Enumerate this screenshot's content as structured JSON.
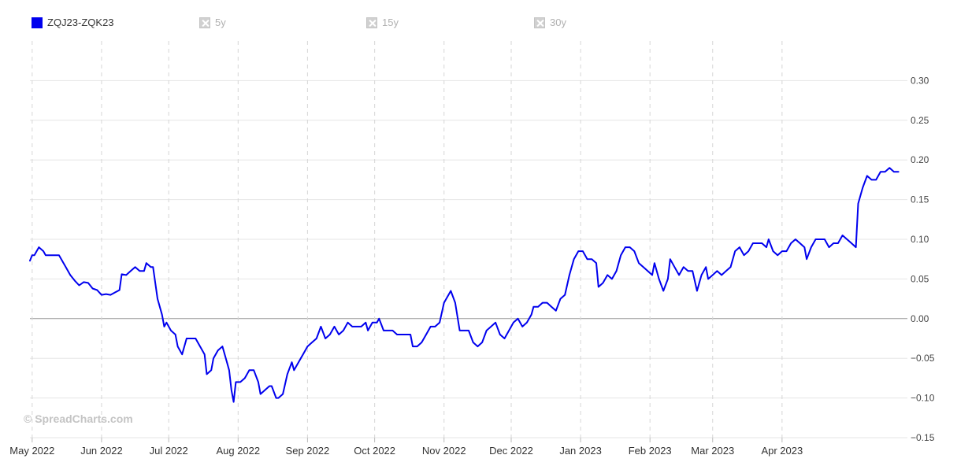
{
  "legend": {
    "items": [
      {
        "label": "ZQJ23-ZQK23",
        "active": true
      },
      {
        "label": "5y",
        "active": false
      },
      {
        "label": "15y",
        "active": false
      },
      {
        "label": "30y",
        "active": false
      }
    ]
  },
  "watermark": "© SpreadCharts.com",
  "colors": {
    "series": "#0000ee",
    "grid": "#e6e6e6",
    "zero_line": "#999999",
    "vertical_grid": "#d6d6d6"
  },
  "chart_data": {
    "type": "line",
    "title": "",
    "xlabel": "",
    "ylabel": "",
    "x_range": [
      "2022-04-30",
      "2023-05-27"
    ],
    "ylim": [
      -0.15,
      0.35
    ],
    "y_ticks": [
      "0.30",
      "0.25",
      "0.20",
      "0.15",
      "0.10",
      "0.05",
      "0.00",
      "−0.05",
      "−0.10",
      "−0.15"
    ],
    "y_tick_values": [
      0.3,
      0.25,
      0.2,
      0.15,
      0.1,
      0.05,
      0.0,
      -0.05,
      -0.1,
      -0.15
    ],
    "x_ticks": [
      {
        "label": "May 2022",
        "date": "2022-05-01"
      },
      {
        "label": "Jun 2022",
        "date": "2022-06-01"
      },
      {
        "label": "Jul 2022",
        "date": "2022-07-01"
      },
      {
        "label": "Aug 2022",
        "date": "2022-08-01"
      },
      {
        "label": "Sep 2022",
        "date": "2022-09-01"
      },
      {
        "label": "Oct 2022",
        "date": "2022-10-01"
      },
      {
        "label": "Nov 2022",
        "date": "2022-11-01"
      },
      {
        "label": "Dec 2022",
        "date": "2022-12-01"
      },
      {
        "label": "Jan 2023",
        "date": "2023-01-01"
      },
      {
        "label": "Feb 2023",
        "date": "2023-02-01"
      },
      {
        "label": "Mar 2023",
        "date": "2023-03-01"
      },
      {
        "label": "Apr 2023",
        "date": "2023-04-01"
      }
    ],
    "grid": true,
    "legend_position": "top-left",
    "series": [
      {
        "name": "ZQJ23-ZQK23",
        "points": [
          [
            "2022-04-30",
            0.073
          ],
          [
            "2022-05-01",
            0.08
          ],
          [
            "2022-05-02",
            0.08
          ],
          [
            "2022-05-03",
            0.085
          ],
          [
            "2022-05-04",
            0.09
          ],
          [
            "2022-05-06",
            0.085
          ],
          [
            "2022-05-07",
            0.08
          ],
          [
            "2022-05-10",
            0.08
          ],
          [
            "2022-05-13",
            0.08
          ],
          [
            "2022-05-16",
            0.065
          ],
          [
            "2022-05-18",
            0.055
          ],
          [
            "2022-05-20",
            0.048
          ],
          [
            "2022-05-22",
            0.042
          ],
          [
            "2022-05-24",
            0.046
          ],
          [
            "2022-05-26",
            0.045
          ],
          [
            "2022-05-28",
            0.038
          ],
          [
            "2022-05-30",
            0.036
          ],
          [
            "2022-06-01",
            0.03
          ],
          [
            "2022-06-03",
            0.031
          ],
          [
            "2022-06-05",
            0.03
          ],
          [
            "2022-06-07",
            0.033
          ],
          [
            "2022-06-09",
            0.036
          ],
          [
            "2022-06-10",
            0.056
          ],
          [
            "2022-06-12",
            0.055
          ],
          [
            "2022-06-14",
            0.06
          ],
          [
            "2022-06-16",
            0.065
          ],
          [
            "2022-06-18",
            0.06
          ],
          [
            "2022-06-20",
            0.06
          ],
          [
            "2022-06-21",
            0.07
          ],
          [
            "2022-06-23",
            0.065
          ],
          [
            "2022-06-24",
            0.065
          ],
          [
            "2022-06-26",
            0.025
          ],
          [
            "2022-06-28",
            0.005
          ],
          [
            "2022-06-29",
            -0.01
          ],
          [
            "2022-06-30",
            -0.005
          ],
          [
            "2022-07-02",
            -0.015
          ],
          [
            "2022-07-04",
            -0.02
          ],
          [
            "2022-07-05",
            -0.035
          ],
          [
            "2022-07-07",
            -0.045
          ],
          [
            "2022-07-09",
            -0.025
          ],
          [
            "2022-07-11",
            -0.025
          ],
          [
            "2022-07-13",
            -0.025
          ],
          [
            "2022-07-15",
            -0.035
          ],
          [
            "2022-07-17",
            -0.045
          ],
          [
            "2022-07-18",
            -0.07
          ],
          [
            "2022-07-20",
            -0.065
          ],
          [
            "2022-07-21",
            -0.05
          ],
          [
            "2022-07-23",
            -0.04
          ],
          [
            "2022-07-25",
            -0.035
          ],
          [
            "2022-07-27",
            -0.055
          ],
          [
            "2022-07-28",
            -0.065
          ],
          [
            "2022-07-29",
            -0.09
          ],
          [
            "2022-07-30",
            -0.105
          ],
          [
            "2022-07-31",
            -0.08
          ],
          [
            "2022-08-02",
            -0.08
          ],
          [
            "2022-08-04",
            -0.075
          ],
          [
            "2022-08-06",
            -0.065
          ],
          [
            "2022-08-08",
            -0.065
          ],
          [
            "2022-08-10",
            -0.08
          ],
          [
            "2022-08-11",
            -0.095
          ],
          [
            "2022-08-13",
            -0.09
          ],
          [
            "2022-08-15",
            -0.085
          ],
          [
            "2022-08-16",
            -0.085
          ],
          [
            "2022-08-18",
            -0.1
          ],
          [
            "2022-08-19",
            -0.1
          ],
          [
            "2022-08-21",
            -0.095
          ],
          [
            "2022-08-23",
            -0.07
          ],
          [
            "2022-08-25",
            -0.055
          ],
          [
            "2022-08-26",
            -0.065
          ],
          [
            "2022-08-28",
            -0.055
          ],
          [
            "2022-08-30",
            -0.045
          ],
          [
            "2022-09-01",
            -0.035
          ],
          [
            "2022-09-03",
            -0.03
          ],
          [
            "2022-09-05",
            -0.025
          ],
          [
            "2022-09-07",
            -0.01
          ],
          [
            "2022-09-09",
            -0.025
          ],
          [
            "2022-09-11",
            -0.02
          ],
          [
            "2022-09-13",
            -0.01
          ],
          [
            "2022-09-15",
            -0.02
          ],
          [
            "2022-09-17",
            -0.015
          ],
          [
            "2022-09-19",
            -0.005
          ],
          [
            "2022-09-21",
            -0.01
          ],
          [
            "2022-09-23",
            -0.01
          ],
          [
            "2022-09-25",
            -0.01
          ],
          [
            "2022-09-27",
            -0.005
          ],
          [
            "2022-09-28",
            -0.015
          ],
          [
            "2022-09-30",
            -0.005
          ],
          [
            "2022-10-02",
            -0.005
          ],
          [
            "2022-10-03",
            0.0
          ],
          [
            "2022-10-05",
            -0.015
          ],
          [
            "2022-10-07",
            -0.015
          ],
          [
            "2022-10-09",
            -0.015
          ],
          [
            "2022-10-11",
            -0.02
          ],
          [
            "2022-10-13",
            -0.02
          ],
          [
            "2022-10-15",
            -0.02
          ],
          [
            "2022-10-17",
            -0.02
          ],
          [
            "2022-10-18",
            -0.035
          ],
          [
            "2022-10-20",
            -0.035
          ],
          [
            "2022-10-22",
            -0.03
          ],
          [
            "2022-10-24",
            -0.02
          ],
          [
            "2022-10-26",
            -0.01
          ],
          [
            "2022-10-28",
            -0.01
          ],
          [
            "2022-10-30",
            -0.005
          ],
          [
            "2022-11-01",
            0.02
          ],
          [
            "2022-11-03",
            0.03
          ],
          [
            "2022-11-04",
            0.035
          ],
          [
            "2022-11-06",
            0.02
          ],
          [
            "2022-11-08",
            -0.015
          ],
          [
            "2022-11-10",
            -0.015
          ],
          [
            "2022-11-12",
            -0.015
          ],
          [
            "2022-11-14",
            -0.03
          ],
          [
            "2022-11-16",
            -0.035
          ],
          [
            "2022-11-18",
            -0.03
          ],
          [
            "2022-11-20",
            -0.015
          ],
          [
            "2022-11-22",
            -0.01
          ],
          [
            "2022-11-24",
            -0.005
          ],
          [
            "2022-11-26",
            -0.02
          ],
          [
            "2022-11-28",
            -0.025
          ],
          [
            "2022-11-30",
            -0.015
          ],
          [
            "2022-12-02",
            -0.005
          ],
          [
            "2022-12-04",
            0.0
          ],
          [
            "2022-12-06",
            -0.01
          ],
          [
            "2022-12-08",
            -0.005
          ],
          [
            "2022-12-10",
            0.005
          ],
          [
            "2022-12-11",
            0.015
          ],
          [
            "2022-12-13",
            0.015
          ],
          [
            "2022-12-15",
            0.02
          ],
          [
            "2022-12-17",
            0.02
          ],
          [
            "2022-12-19",
            0.015
          ],
          [
            "2022-12-21",
            0.01
          ],
          [
            "2022-12-23",
            0.025
          ],
          [
            "2022-12-25",
            0.03
          ],
          [
            "2022-12-27",
            0.055
          ],
          [
            "2022-12-29",
            0.075
          ],
          [
            "2022-12-31",
            0.085
          ],
          [
            "2023-01-02",
            0.085
          ],
          [
            "2023-01-04",
            0.075
          ],
          [
            "2023-01-06",
            0.075
          ],
          [
            "2023-01-08",
            0.07
          ],
          [
            "2023-01-09",
            0.04
          ],
          [
            "2023-01-11",
            0.045
          ],
          [
            "2023-01-13",
            0.055
          ],
          [
            "2023-01-15",
            0.05
          ],
          [
            "2023-01-17",
            0.06
          ],
          [
            "2023-01-19",
            0.08
          ],
          [
            "2023-01-21",
            0.09
          ],
          [
            "2023-01-23",
            0.09
          ],
          [
            "2023-01-25",
            0.085
          ],
          [
            "2023-01-27",
            0.07
          ],
          [
            "2023-01-29",
            0.065
          ],
          [
            "2023-01-31",
            0.06
          ],
          [
            "2023-02-02",
            0.055
          ],
          [
            "2023-02-03",
            0.07
          ],
          [
            "2023-02-05",
            0.05
          ],
          [
            "2023-02-07",
            0.035
          ],
          [
            "2023-02-09",
            0.05
          ],
          [
            "2023-02-10",
            0.075
          ],
          [
            "2023-02-12",
            0.065
          ],
          [
            "2023-02-14",
            0.055
          ],
          [
            "2023-02-16",
            0.065
          ],
          [
            "2023-02-18",
            0.06
          ],
          [
            "2023-02-20",
            0.06
          ],
          [
            "2023-02-22",
            0.035
          ],
          [
            "2023-02-24",
            0.055
          ],
          [
            "2023-02-26",
            0.065
          ],
          [
            "2023-02-27",
            0.05
          ],
          [
            "2023-03-01",
            0.055
          ],
          [
            "2023-03-03",
            0.06
          ],
          [
            "2023-03-05",
            0.055
          ],
          [
            "2023-03-07",
            0.06
          ],
          [
            "2023-03-09",
            0.065
          ],
          [
            "2023-03-11",
            0.085
          ],
          [
            "2023-03-13",
            0.09
          ],
          [
            "2023-03-15",
            0.08
          ],
          [
            "2023-03-17",
            0.085
          ],
          [
            "2023-03-19",
            0.095
          ],
          [
            "2023-03-21",
            0.095
          ],
          [
            "2023-03-23",
            0.095
          ],
          [
            "2023-03-25",
            0.09
          ],
          [
            "2023-03-26",
            0.1
          ],
          [
            "2023-03-28",
            0.085
          ],
          [
            "2023-03-30",
            0.08
          ],
          [
            "2023-04-01",
            0.085
          ],
          [
            "2023-04-03",
            0.085
          ],
          [
            "2023-04-05",
            0.095
          ],
          [
            "2023-04-07",
            0.1
          ],
          [
            "2023-04-09",
            0.095
          ],
          [
            "2023-04-11",
            0.09
          ],
          [
            "2023-04-12",
            0.075
          ],
          [
            "2023-04-14",
            0.09
          ],
          [
            "2023-04-16",
            0.1
          ],
          [
            "2023-04-18",
            0.1
          ],
          [
            "2023-04-20",
            0.1
          ],
          [
            "2023-04-22",
            0.09
          ],
          [
            "2023-04-24",
            0.095
          ],
          [
            "2023-04-26",
            0.095
          ],
          [
            "2023-04-28",
            0.105
          ],
          [
            "2023-04-30",
            0.1
          ],
          [
            "2023-05-02",
            0.095
          ],
          [
            "2023-05-04",
            0.09
          ],
          [
            "2023-05-05",
            0.145
          ],
          [
            "2023-05-07",
            0.165
          ],
          [
            "2023-05-09",
            0.18
          ],
          [
            "2023-05-11",
            0.175
          ],
          [
            "2023-05-13",
            0.175
          ],
          [
            "2023-05-15",
            0.185
          ],
          [
            "2023-05-17",
            0.185
          ],
          [
            "2023-05-19",
            0.19
          ],
          [
            "2023-05-21",
            0.185
          ],
          [
            "2023-05-23",
            0.185
          ]
        ]
      }
    ]
  }
}
